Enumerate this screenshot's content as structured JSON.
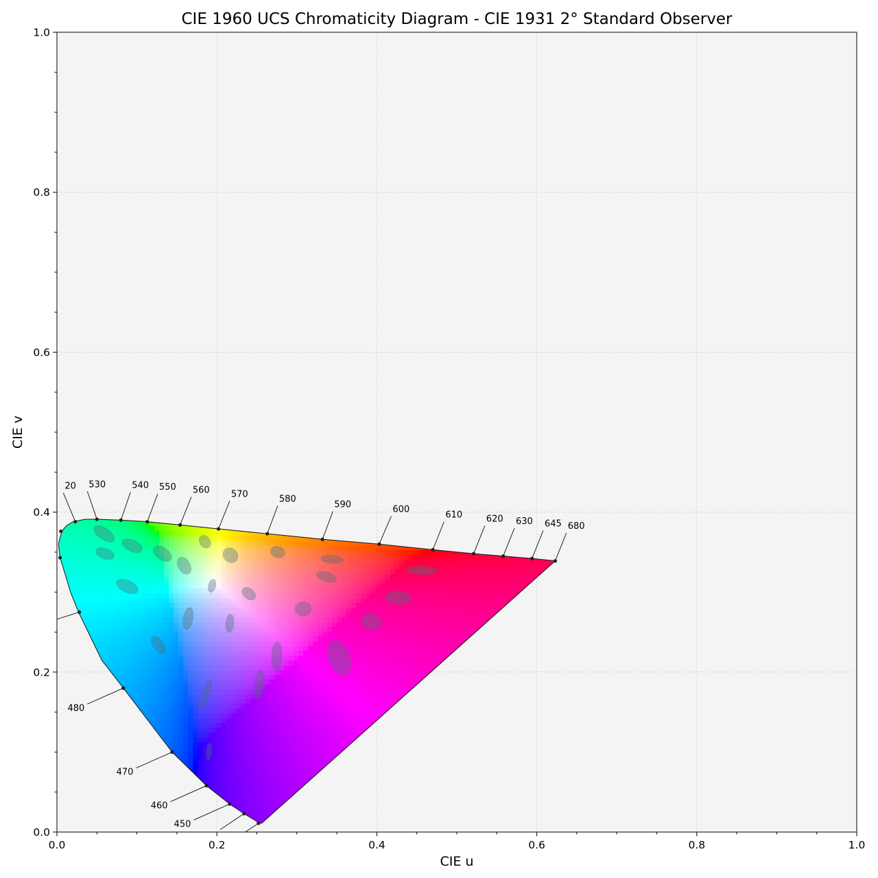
{
  "chart_data": {
    "type": "scatter",
    "title": "CIE 1960 UCS Chromaticity Diagram - CIE 1931 2° Standard Observer",
    "xlabel": "CIE u",
    "ylabel": "CIE v",
    "xlim": [
      0,
      1
    ],
    "ylim": [
      0,
      1
    ],
    "x_ticks": [
      {
        "value": 0.0,
        "label": "0.0"
      },
      {
        "value": 0.2,
        "label": "0.2"
      },
      {
        "value": 0.4,
        "label": "0.4"
      },
      {
        "value": 0.6,
        "label": "0.6"
      },
      {
        "value": 0.8,
        "label": "0.8"
      },
      {
        "value": 1.0,
        "label": "1.0"
      }
    ],
    "y_ticks": [
      {
        "value": 0.0,
        "label": "0.0"
      },
      {
        "value": 0.2,
        "label": "0.2"
      },
      {
        "value": 0.4,
        "label": "0.4"
      },
      {
        "value": 0.6,
        "label": "0.6"
      },
      {
        "value": 0.8,
        "label": "0.8"
      },
      {
        "value": 1.0,
        "label": "1.0"
      }
    ],
    "grid": true,
    "background_color": "#f4f4f4",
    "spectral_locus": [
      [
        0.256,
        0.011
      ],
      [
        0.252,
        0.012
      ],
      [
        0.234,
        0.023
      ],
      [
        0.216,
        0.035
      ],
      [
        0.187,
        0.058
      ],
      [
        0.144,
        0.1
      ],
      [
        0.083,
        0.18
      ],
      [
        0.056,
        0.215
      ],
      [
        0.027,
        0.275
      ],
      [
        0.017,
        0.3
      ],
      [
        0.011,
        0.32
      ],
      [
        0.004,
        0.343
      ],
      [
        0.002,
        0.36
      ],
      [
        0.006,
        0.376
      ],
      [
        0.012,
        0.383
      ],
      [
        0.02,
        0.388
      ],
      [
        0.035,
        0.391
      ],
      [
        0.051,
        0.391
      ],
      [
        0.08,
        0.39
      ],
      [
        0.113,
        0.388
      ],
      [
        0.154,
        0.384
      ],
      [
        0.202,
        0.379
      ],
      [
        0.263,
        0.373
      ],
      [
        0.332,
        0.366
      ],
      [
        0.402,
        0.36
      ],
      [
        0.47,
        0.353
      ],
      [
        0.521,
        0.348
      ],
      [
        0.558,
        0.345
      ],
      [
        0.594,
        0.342
      ],
      [
        0.623,
        0.339
      ]
    ],
    "wavelength_labels": [
      {
        "label": "20",
        "u": 0.023,
        "v": 0.388,
        "ldx": -0.015,
        "ldy": 0.036
      },
      {
        "label": "530",
        "u": 0.05,
        "v": 0.391,
        "ldx": -0.012,
        "ldy": 0.035
      },
      {
        "label": "540",
        "u": 0.08,
        "v": 0.39,
        "ldx": 0.012,
        "ldy": 0.035
      },
      {
        "label": "550",
        "u": 0.113,
        "v": 0.388,
        "ldx": 0.013,
        "ldy": 0.035
      },
      {
        "label": "560",
        "u": 0.154,
        "v": 0.384,
        "ldx": 0.014,
        "ldy": 0.035
      },
      {
        "label": "570",
        "u": 0.202,
        "v": 0.379,
        "ldx": 0.014,
        "ldy": 0.035
      },
      {
        "label": "580",
        "u": 0.263,
        "v": 0.373,
        "ldx": 0.013,
        "ldy": 0.035
      },
      {
        "label": "590",
        "u": 0.332,
        "v": 0.366,
        "ldx": 0.013,
        "ldy": 0.035
      },
      {
        "label": "600",
        "u": 0.403,
        "v": 0.36,
        "ldx": 0.015,
        "ldy": 0.035
      },
      {
        "label": "610",
        "u": 0.47,
        "v": 0.353,
        "ldx": 0.014,
        "ldy": 0.035
      },
      {
        "label": "620",
        "u": 0.521,
        "v": 0.348,
        "ldx": 0.014,
        "ldy": 0.035
      },
      {
        "label": "630",
        "u": 0.558,
        "v": 0.345,
        "ldx": 0.014,
        "ldy": 0.035
      },
      {
        "label": "645",
        "u": 0.594,
        "v": 0.342,
        "ldx": 0.014,
        "ldy": 0.035
      },
      {
        "label": "680",
        "u": 0.623,
        "v": 0.339,
        "ldx": 0.014,
        "ldy": 0.035
      },
      {
        "label": "",
        "u": 0.005,
        "v": 0.376,
        "ldx": 0,
        "ldy": 0
      },
      {
        "label": "",
        "u": 0.004,
        "v": 0.343,
        "ldx": 0,
        "ldy": 0
      },
      {
        "label": "",
        "u": 0.028,
        "v": 0.275,
        "ldx": -0.047,
        "ldy": -0.015
      },
      {
        "label": "480",
        "u": 0.083,
        "v": 0.18,
        "ldx": -0.045,
        "ldy": -0.02
      },
      {
        "label": "470",
        "u": 0.144,
        "v": 0.1,
        "ldx": -0.045,
        "ldy": -0.02
      },
      {
        "label": "460",
        "u": 0.187,
        "v": 0.058,
        "ldx": -0.045,
        "ldy": -0.02
      },
      {
        "label": "450",
        "u": 0.216,
        "v": 0.035,
        "ldx": -0.045,
        "ldy": -0.02
      },
      {
        "label": "",
        "u": 0.234,
        "v": 0.023,
        "ldx": -0.03,
        "ldy": -0.02
      },
      {
        "label": "",
        "u": 0.252,
        "v": 0.011,
        "ldx": -0.03,
        "ldy": -0.02
      }
    ],
    "macadam_ellipses": [
      {
        "u": 0.059,
        "v": 0.373,
        "ru": 0.015,
        "rv": 0.007,
        "rot": -35
      },
      {
        "u": 0.06,
        "v": 0.348,
        "ru": 0.012,
        "rv": 0.0065,
        "rot": -20
      },
      {
        "u": 0.094,
        "v": 0.358,
        "ru": 0.0135,
        "rv": 0.007,
        "rot": -25
      },
      {
        "u": 0.088,
        "v": 0.307,
        "ru": 0.0145,
        "rv": 0.0075,
        "rot": -25
      },
      {
        "u": 0.132,
        "v": 0.348,
        "ru": 0.013,
        "rv": 0.0075,
        "rot": -35
      },
      {
        "u": 0.159,
        "v": 0.333,
        "ru": 0.0115,
        "rv": 0.0075,
        "rot": -60
      },
      {
        "u": 0.185,
        "v": 0.363,
        "ru": 0.0085,
        "rv": 0.0065,
        "rot": -55
      },
      {
        "u": 0.217,
        "v": 0.346,
        "ru": 0.01,
        "rv": 0.0085,
        "rot": -45
      },
      {
        "u": 0.194,
        "v": 0.308,
        "ru": 0.0085,
        "rv": 0.0045,
        "rot": 75
      },
      {
        "u": 0.164,
        "v": 0.267,
        "ru": 0.014,
        "rv": 0.006,
        "rot": 80
      },
      {
        "u": 0.127,
        "v": 0.234,
        "ru": 0.0125,
        "rv": 0.0065,
        "rot": -55
      },
      {
        "u": 0.216,
        "v": 0.261,
        "ru": 0.0115,
        "rv": 0.005,
        "rot": 85
      },
      {
        "u": 0.24,
        "v": 0.298,
        "ru": 0.0095,
        "rv": 0.0065,
        "rot": -40
      },
      {
        "u": 0.276,
        "v": 0.35,
        "ru": 0.009,
        "rv": 0.007,
        "rot": -20
      },
      {
        "u": 0.344,
        "v": 0.341,
        "ru": 0.014,
        "rv": 0.005,
        "rot": -5
      },
      {
        "u": 0.337,
        "v": 0.319,
        "ru": 0.013,
        "rv": 0.006,
        "rot": -18
      },
      {
        "u": 0.308,
        "v": 0.279,
        "ru": 0.01,
        "rv": 0.009,
        "rot": 0
      },
      {
        "u": 0.275,
        "v": 0.22,
        "ru": 0.018,
        "rv": 0.0065,
        "rot": 88
      },
      {
        "u": 0.353,
        "v": 0.218,
        "ru": 0.0225,
        "rv": 0.013,
        "rot": -70
      },
      {
        "u": 0.393,
        "v": 0.263,
        "ru": 0.0125,
        "rv": 0.01,
        "rot": -15
      },
      {
        "u": 0.427,
        "v": 0.293,
        "ru": 0.016,
        "rv": 0.0085,
        "rot": -5
      },
      {
        "u": 0.456,
        "v": 0.327,
        "ru": 0.02,
        "rv": 0.0055,
        "rot": -2
      },
      {
        "u": 0.186,
        "v": 0.172,
        "ru": 0.0185,
        "rv": 0.0045,
        "rot": 72
      },
      {
        "u": 0.253,
        "v": 0.184,
        "ru": 0.018,
        "rv": 0.006,
        "rot": 85
      },
      {
        "u": 0.19,
        "v": 0.1,
        "ru": 0.011,
        "rv": 0.0035,
        "rot": 85
      }
    ]
  }
}
